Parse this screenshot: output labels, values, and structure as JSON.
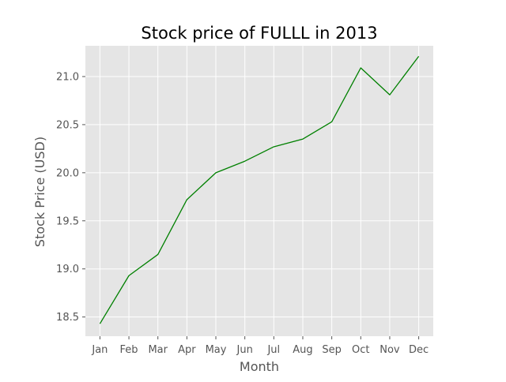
{
  "chart_data": {
    "type": "line",
    "title": "Stock price of FULLL in 2013",
    "xlabel": "Month",
    "ylabel": "Stock Price (USD)",
    "categories": [
      "Jan",
      "Feb",
      "Mar",
      "Apr",
      "May",
      "Jun",
      "Jul",
      "Aug",
      "Sep",
      "Oct",
      "Nov",
      "Dec"
    ],
    "series": [
      {
        "values": [
          18.43,
          18.93,
          19.15,
          19.72,
          20.0,
          20.12,
          20.27,
          20.35,
          20.53,
          21.09,
          20.81,
          21.21
        ],
        "color": "#008000"
      }
    ],
    "ylim": [
      18.3,
      21.32
    ],
    "yticks": [
      "18.5",
      "19.0",
      "19.5",
      "20.0",
      "20.5",
      "21.0"
    ],
    "grid": true,
    "legend": "none",
    "style": {
      "plot_background": "#e5e5e5",
      "grid_color": "#ffffff",
      "tick_color": "#555555"
    }
  }
}
